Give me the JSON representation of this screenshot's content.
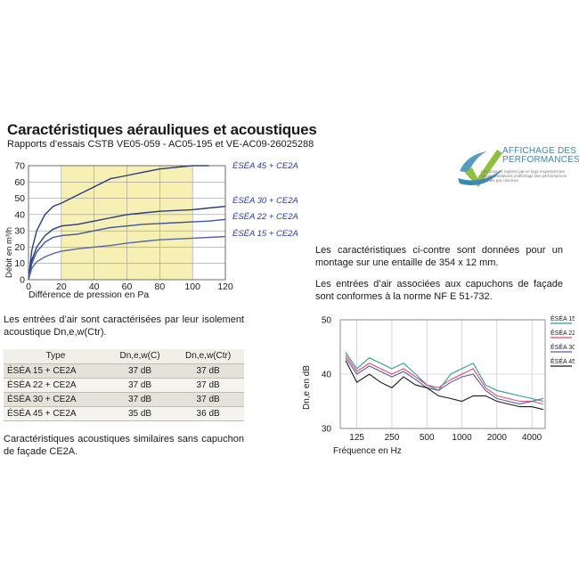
{
  "document": {
    "title": "Caractéristiques aérauliques et acoustiques",
    "subtitle": "Rapports d’essais CSTB VE05-059 - AC05-195 et VE-AC09-26025288"
  },
  "logo": {
    "line1": "AFFICHAGE DES",
    "line2": "PERFORMANCES",
    "note": "Les produits repérés par ce logo respectent les recommandations d’affichage des performances définies par Uniclima",
    "icon": "checkmark-swoosh-icon",
    "colors": {
      "check": "#8fbf3c",
      "swoosh": "#3a88b8"
    }
  },
  "texts": {
    "characteristics": "Les caractéristiques ci-contre sont données pour un montage sur une entaille de 354 x 12 mm.",
    "capuchons": "Les entrées d’air associées aux capuchons de façade sont conformes à la norme NF E 51-732.",
    "isolation": "Les entrées d’air sont caractérisées par leur isolement acoustique Dn,e,w(Ctr).",
    "similar": "Caractéristiques acoustiques similaires sans capuchon de façade CE2A."
  },
  "table": {
    "headers": [
      "Type",
      "Dn,e,w(C)",
      "Dn,e,w(Ctr)"
    ],
    "rows": [
      [
        "ÉSÉA 15 + CE2A",
        "37 dB",
        "37 dB"
      ],
      [
        "ÉSÉA 22 + CE2A",
        "37 dB",
        "37 dB"
      ],
      [
        "ÉSÉA 30 + CE2A",
        "37 dB",
        "37 dB"
      ],
      [
        "ÉSÉA 45 + CE2A",
        "35 dB",
        "36 dB"
      ]
    ]
  },
  "chart_data": [
    {
      "type": "line",
      "xlabel": "Différence de pression en Pa",
      "ylabel": "Débit en m³/h",
      "xlim": [
        0,
        120
      ],
      "ylim": [
        0,
        70
      ],
      "x_ticks": [
        "0",
        "20",
        "40",
        "60",
        "80",
        "100",
        "120"
      ],
      "y_ticks": [
        "0",
        "10",
        "20",
        "30",
        "40",
        "50",
        "60",
        "70"
      ],
      "grid": true,
      "highlight_band": {
        "x": [
          20,
          100
        ],
        "color": "#f7f0b4"
      },
      "series": [
        {
          "name": "ÉSÉA 45 + CE2A",
          "color": "#2a3b7a",
          "x": [
            0,
            2,
            5,
            10,
            15,
            20,
            30,
            40,
            50,
            60,
            70,
            80,
            90,
            100,
            110
          ],
          "y": [
            0,
            18,
            30,
            40,
            45,
            47,
            52,
            57,
            62,
            64,
            66,
            68,
            69,
            70,
            70
          ]
        },
        {
          "name": "ÉSÉA 30 + CE2A",
          "color": "#2a3b7a",
          "x": [
            0,
            2,
            5,
            10,
            15,
            20,
            30,
            40,
            50,
            60,
            70,
            80,
            90,
            100,
            110,
            120
          ],
          "y": [
            0,
            12,
            20,
            27,
            31,
            33,
            34,
            36,
            38,
            40,
            41,
            42,
            42.5,
            43,
            44,
            45
          ]
        },
        {
          "name": "ÉSÉA 22 + CE2A",
          "color": "#3a55a0",
          "x": [
            0,
            2,
            5,
            10,
            15,
            20,
            30,
            40,
            50,
            60,
            70,
            80,
            90,
            100,
            110,
            120
          ],
          "y": [
            0,
            10,
            17,
            23,
            26,
            27,
            28,
            30,
            32,
            33,
            34,
            34.5,
            35,
            35.5,
            36,
            37
          ]
        },
        {
          "name": "ÉSÉA 15 + CE2A",
          "color": "#5566aa",
          "x": [
            0,
            2,
            5,
            10,
            15,
            20,
            30,
            40,
            50,
            60,
            70,
            80,
            90,
            100,
            110,
            120
          ],
          "y": [
            0,
            7,
            11,
            14,
            16,
            17.5,
            19,
            20,
            21,
            22.5,
            23.5,
            24.5,
            25,
            25.5,
            26,
            26.5
          ]
        }
      ]
    },
    {
      "type": "line",
      "xlabel": "Fréquence en Hz",
      "ylabel": "Dn,e en dB",
      "x_scale": "log",
      "x_ticks": [
        "125",
        "250",
        "500",
        "1000",
        "2000",
        "4000"
      ],
      "ylim": [
        30,
        50
      ],
      "y_ticks": [
        "30",
        "40",
        "50"
      ],
      "grid": true,
      "x": [
        100,
        125,
        160,
        200,
        250,
        315,
        400,
        500,
        630,
        800,
        1000,
        1250,
        1600,
        2000,
        2500,
        3150,
        4000,
        5000
      ],
      "series": [
        {
          "name": "ÉSÉA 15",
          "color": "#2e9e8e",
          "y": [
            44,
            41,
            43,
            42,
            41,
            42,
            40,
            38,
            37,
            40,
            41,
            42,
            38,
            37,
            36.5,
            36,
            35.5,
            35
          ]
        },
        {
          "name": "ÉSÉA 22",
          "color": "#d94d6a",
          "y": [
            43.5,
            40.5,
            42,
            41,
            40,
            41,
            39.5,
            38,
            37.5,
            39,
            40,
            41,
            37.5,
            36,
            35.5,
            35,
            35,
            34.5
          ]
        },
        {
          "name": "ÉSÉA 30",
          "color": "#5a5aa8",
          "y": [
            43,
            40,
            41.5,
            40.5,
            39.5,
            40.5,
            39,
            37.5,
            37,
            38.5,
            39.5,
            40,
            37,
            35.5,
            35,
            34.5,
            35,
            35.5
          ]
        },
        {
          "name": "ÉSÉA 45",
          "color": "#1a1a1a",
          "y": [
            42.5,
            38.5,
            40,
            38.5,
            37.5,
            39.5,
            38,
            37.5,
            36,
            35.5,
            35,
            36,
            36,
            35,
            34.5,
            34,
            34,
            33.5
          ]
        }
      ]
    }
  ]
}
